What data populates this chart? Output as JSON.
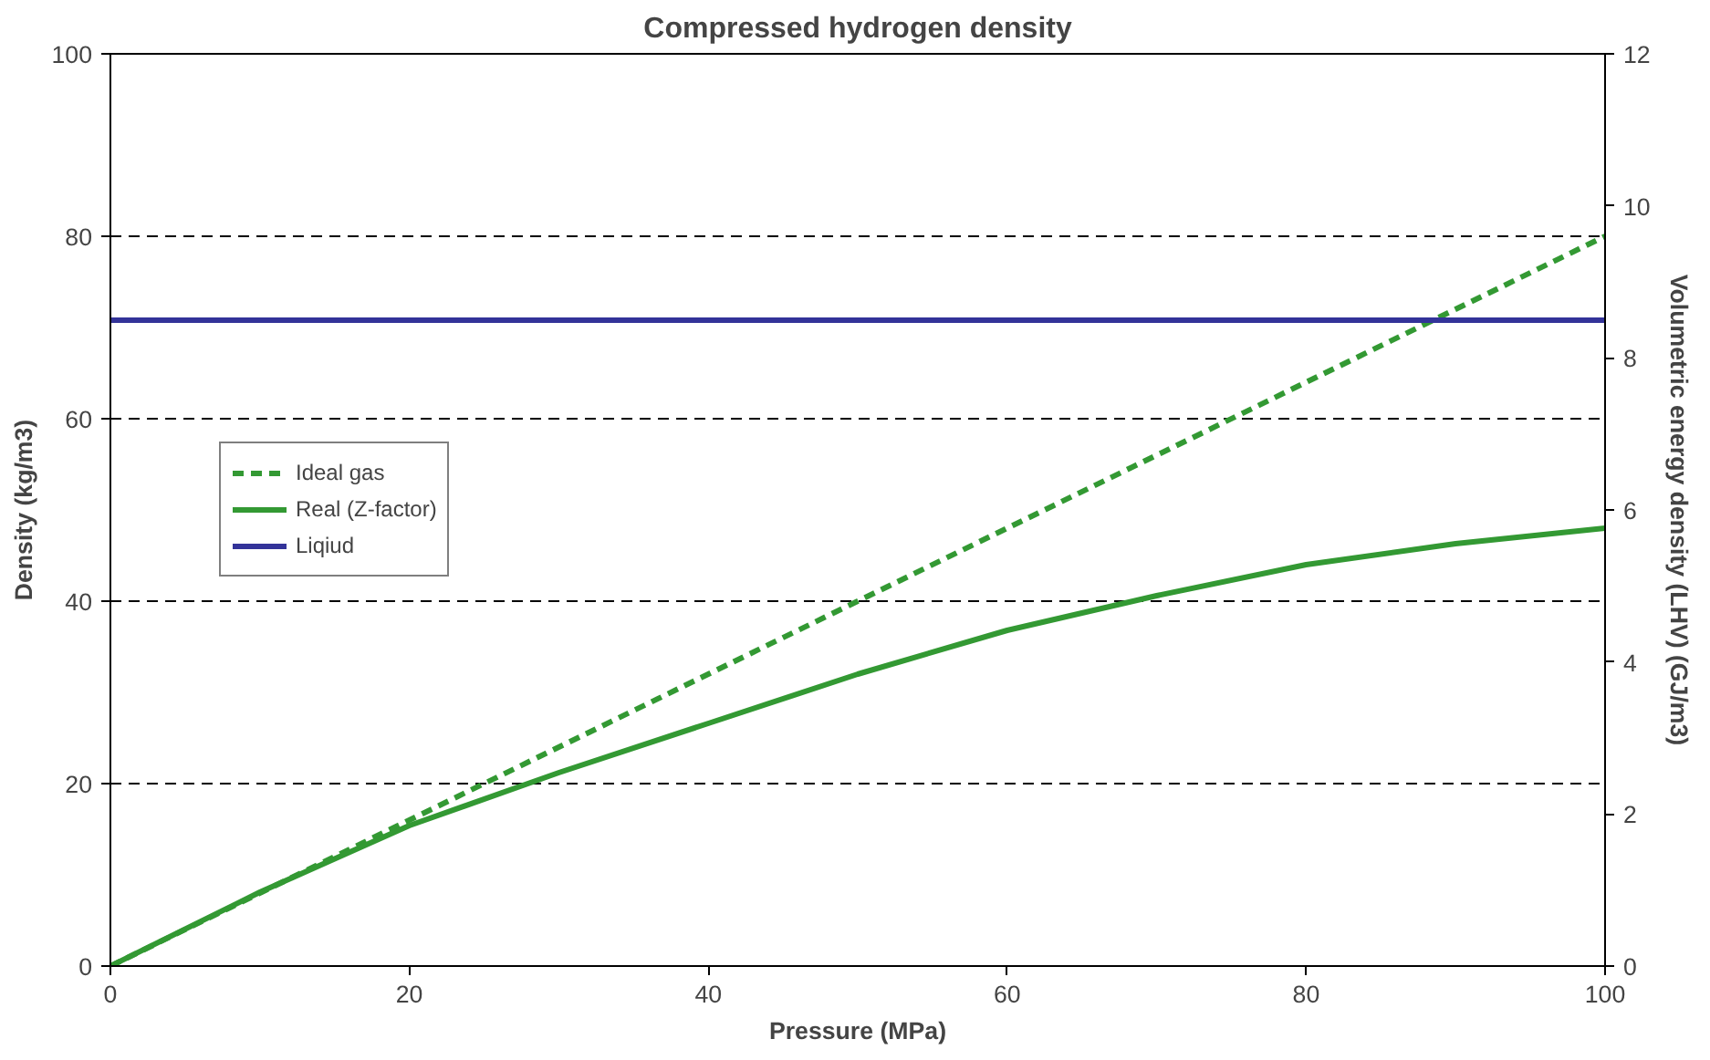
{
  "chart_data": {
    "type": "line",
    "title": "Compressed hydrogen density",
    "xlabel": "Pressure (MPa)",
    "ylabel": "Density (kg/m3)",
    "y2label": "Volumetric energy density (LHV) (GJ/m3)",
    "xlim": [
      0,
      100
    ],
    "xticks": [
      0,
      20,
      40,
      60,
      80,
      100
    ],
    "ylim": [
      0,
      100
    ],
    "yticks": [
      0,
      20,
      40,
      60,
      80,
      100
    ],
    "y2lim": [
      0,
      12
    ],
    "y2ticks": [
      0,
      2,
      4,
      6,
      8,
      10,
      12
    ],
    "grid": "y",
    "legend": "left",
    "marker": "none",
    "series": [
      {
        "name": "Ideal gas",
        "color": "#339933",
        "line_style": "dashed",
        "x": [
          0,
          100
        ],
        "values": [
          0,
          80
        ]
      },
      {
        "name": "Real (Z-factor)",
        "color": "#339933",
        "line_style": "solid",
        "x": [
          0,
          10,
          20,
          30,
          40,
          50,
          60,
          70,
          80,
          90,
          100
        ],
        "values": [
          0,
          8.1,
          15.4,
          21.2,
          26.6,
          32,
          36.8,
          40.6,
          44,
          46.3,
          48
        ]
      },
      {
        "name": "Liqiud",
        "color": "#333399",
        "line_style": "solid",
        "x": [
          0,
          100
        ],
        "values": [
          70.8,
          70.8
        ]
      }
    ]
  }
}
